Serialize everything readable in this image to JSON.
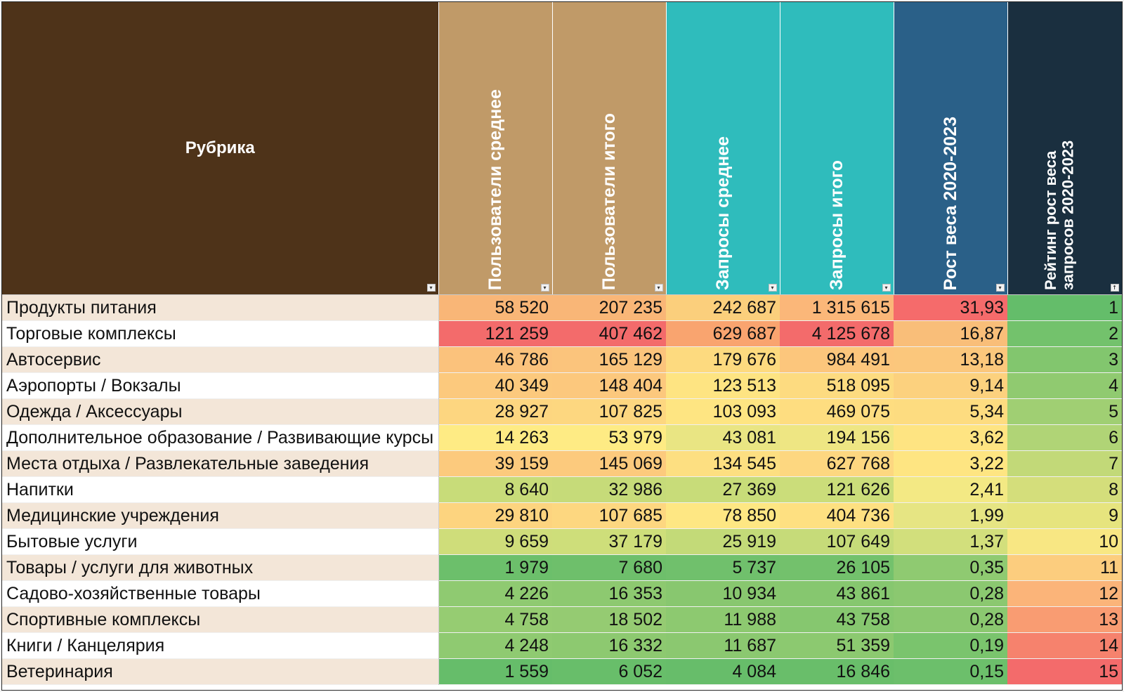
{
  "table": {
    "headers": [
      "Рубрика",
      "Пользователи среднее",
      "Пользователи итого",
      "Запросы среднее",
      "Запросы итого",
      "Рост веса 2020-2023",
      "Рейтинг рост веса запросов 2020-2023"
    ],
    "header_colors": [
      "#4e3319",
      "#c09a68",
      "#c09a68",
      "#2fbcbc",
      "#2fbcbc",
      "#2a6088",
      "#1a2f3f"
    ],
    "filter_icons": [
      "filter-dropdown-icon",
      "filter-dropdown-icon",
      "filter-dropdown-icon",
      "filter-dropdown-icon",
      "filter-dropdown-icon",
      "filter-dropdown-icon",
      "sort-ascending-filter-icon"
    ],
    "rows": [
      {
        "cells": [
          "Продукты питания",
          "58 520",
          "207 235",
          "242 687",
          "1 315 615",
          "31,93",
          "1"
        ],
        "colors": [
          "",
          "#f9b677",
          "#f9b677",
          "#fbcf7c",
          "#fbb779",
          "#f56b6b",
          "#64bd6a"
        ]
      },
      {
        "cells": [
          "Торговые комплексы",
          "121 259",
          "407 462",
          "629 687",
          "4 125 678",
          "16,87",
          "2"
        ],
        "colors": [
          "",
          "#f36b6b",
          "#f36b6b",
          "#f9a46f",
          "#f36b6b",
          "#f9be79",
          "#73c26c"
        ]
      },
      {
        "cells": [
          "Автосервис",
          "46 786",
          "165 129",
          "179 676",
          "984 491",
          "13,18",
          "3"
        ],
        "colors": [
          "",
          "#fbc27c",
          "#fbc47c",
          "#fdda7f",
          "#fcc67c",
          "#fbc77c",
          "#82c66e"
        ]
      },
      {
        "cells": [
          "Аэропорты / Вокзалы",
          "40 349",
          "148 404",
          "123 513",
          "518 095",
          "9,14",
          "4"
        ],
        "colors": [
          "",
          "#fcc97d",
          "#fcc87d",
          "#fee482",
          "#fddb80",
          "#fcd17e",
          "#90ca70"
        ]
      },
      {
        "cells": [
          "Одежда / Аксессуары",
          "28 927",
          "107 825",
          "103 093",
          "469 075",
          "5,34",
          "5"
        ],
        "colors": [
          "",
          "#fdd680",
          "#fdd780",
          "#fee582",
          "#fedd80",
          "#fddc80",
          "#a0cf73"
        ]
      },
      {
        "cells": [
          "Дополнительное образование / Развивающие курсы",
          "14 263",
          "53 979",
          "43 081",
          "194 156",
          "3,62",
          "6"
        ],
        "colors": [
          "",
          "#feeb84",
          "#feeb84",
          "#e9e583",
          "#eee683",
          "#fee482",
          "#b0d476"
        ]
      },
      {
        "cells": [
          "Места отдыха / Развлекательные заведения",
          "39 159",
          "145 069",
          "134 545",
          "627 768",
          "3,22",
          "7"
        ],
        "colors": [
          "",
          "#fcca7d",
          "#fcca7d",
          "#fddf81",
          "#fdd780",
          "#fee582",
          "#c2d978"
        ]
      },
      {
        "cells": [
          "Напитки",
          "8 640",
          "32 986",
          "27 369",
          "121 626",
          "2,41",
          "8"
        ],
        "colors": [
          "",
          "#c8dc79",
          "#c6db79",
          "#c8dc79",
          "#cbdd7a",
          "#f3e984",
          "#d4de7b"
        ]
      },
      {
        "cells": [
          "Медицинские учреждения",
          "29 810",
          "107 685",
          "78 850",
          "404 736",
          "1,99",
          "9"
        ],
        "colors": [
          "",
          "#fdd47f",
          "#fdd780",
          "#fee783",
          "#fee081",
          "#e6e583",
          "#e6e47e"
        ]
      },
      {
        "cells": [
          "Бытовые услуги",
          "9 659",
          "37 179",
          "25 919",
          "107 649",
          "1,37",
          "10"
        ],
        "colors": [
          "",
          "#cfdd7a",
          "#cede7a",
          "#c3da78",
          "#c6db79",
          "#d2df7c",
          "#f8e783"
        ]
      },
      {
        "cells": [
          "Товары / услуги для животных",
          "1 979",
          "7 680",
          "5 737",
          "26 105",
          "0,35",
          "11"
        ],
        "colors": [
          "",
          "#6cbf6b",
          "#6ebf6b",
          "#70c06c",
          "#73c16c",
          "#8fca71",
          "#fccd7e"
        ]
      },
      {
        "cells": [
          "Садово-хозяйственные товары",
          "4 226",
          "16 353",
          "10 934",
          "43 861",
          "0,28",
          "12"
        ],
        "colors": [
          "",
          "#8fca71",
          "#8dc970",
          "#88c76f",
          "#86c76f",
          "#8bc870",
          "#fbb479"
        ]
      },
      {
        "cells": [
          "Спортивные комплексы",
          "4 758",
          "18 502",
          "11 988",
          "43 758",
          "0,28",
          "13"
        ],
        "colors": [
          "",
          "#96cc72",
          "#95cb72",
          "#8dc970",
          "#86c76f",
          "#8bc870",
          "#f99c72"
        ]
      },
      {
        "cells": [
          "Книги / Канцелярия",
          "4 248",
          "16 332",
          "11 687",
          "51 359",
          "0,19",
          "14"
        ],
        "colors": [
          "",
          "#8fca71",
          "#8dc970",
          "#8bc870",
          "#8cc970",
          "#7ac46d",
          "#f6826d"
        ]
      },
      {
        "cells": [
          "Ветеринария",
          "1 559",
          "6 052",
          "4 084",
          "16 846",
          "0,15",
          "15"
        ],
        "colors": [
          "",
          "#66bd6a",
          "#68be6a",
          "#67bd6a",
          "#69be6a",
          "#6cbf6b",
          "#f36b6b"
        ]
      }
    ]
  }
}
